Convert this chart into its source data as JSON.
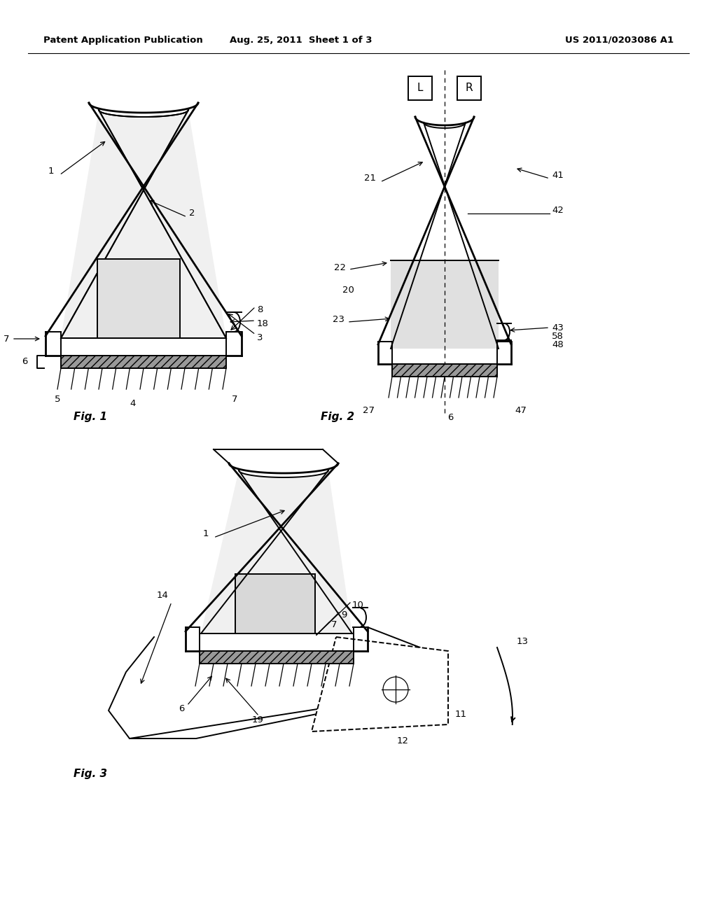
{
  "background_color": "#ffffff",
  "header_left": "Patent Application Publication",
  "header_center": "Aug. 25, 2011  Sheet 1 of 3",
  "header_right": "US 2011/0203086 A1",
  "fig1_label": "Fig. 1",
  "fig2_label": "Fig. 2",
  "fig3_label": "Fig. 3",
  "line_color": "#000000",
  "lw_thick": 2.0,
  "lw_med": 1.4,
  "lw_thin": 0.9,
  "font_size_header": 9.5,
  "font_size_figlabel": 11,
  "font_size_num": 9.5
}
